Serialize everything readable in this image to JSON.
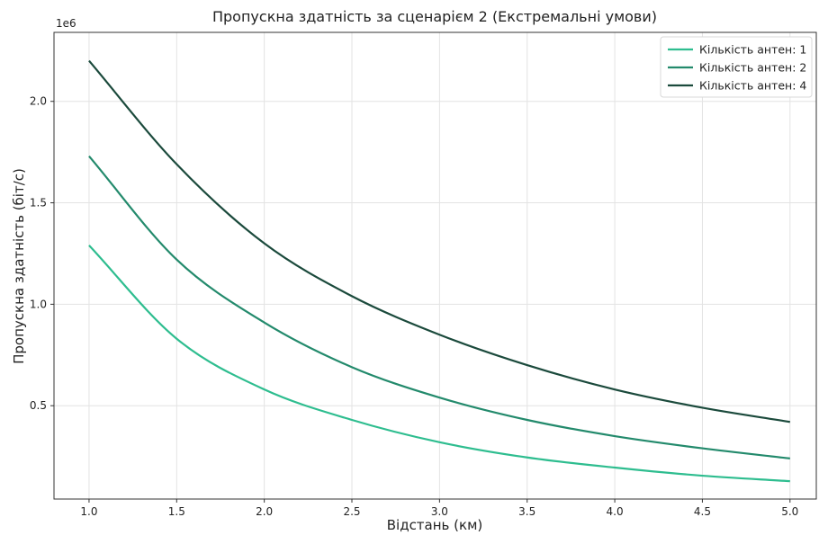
{
  "chart_data": {
    "type": "line",
    "title": "Пропускна здатність за сценарієм 2 (Екстремальні умови)",
    "xlabel": "Відстань (км)",
    "ylabel": "Пропускна здатність (біт/с)",
    "y_offset_label": "1e6",
    "xlim": [
      0.8,
      5.15
    ],
    "ylim": [
      0.04,
      2.34
    ],
    "y_multiplier": 1000000,
    "x_ticks": [
      1.0,
      1.5,
      2.0,
      2.5,
      3.0,
      3.5,
      4.0,
      4.5,
      5.0
    ],
    "x_tick_labels": [
      "1.0",
      "1.5",
      "2.0",
      "2.5",
      "3.0",
      "3.5",
      "4.0",
      "4.5",
      "5.0"
    ],
    "y_ticks": [
      0.5,
      1.0,
      1.5,
      2.0
    ],
    "y_tick_labels": [
      "0.5",
      "1.0",
      "1.5",
      "2.0"
    ],
    "grid": true,
    "legend_position": "top-right",
    "x": [
      1.0,
      1.5,
      2.0,
      2.5,
      3.0,
      3.5,
      4.0,
      4.5,
      5.0
    ],
    "series": [
      {
        "name": "Кількість антен: 1",
        "color": "#2ebd8f",
        "values": [
          1.29,
          0.83,
          0.58,
          0.43,
          0.32,
          0.245,
          0.195,
          0.155,
          0.128
        ]
      },
      {
        "name": "Кількість антен: 2",
        "color": "#238a6c",
        "values": [
          1.73,
          1.22,
          0.91,
          0.69,
          0.54,
          0.43,
          0.35,
          0.29,
          0.24
        ]
      },
      {
        "name": "Кількість антен: 4",
        "color": "#1b4a3c",
        "values": [
          2.2,
          1.69,
          1.3,
          1.04,
          0.85,
          0.7,
          0.58,
          0.49,
          0.42
        ]
      }
    ]
  }
}
